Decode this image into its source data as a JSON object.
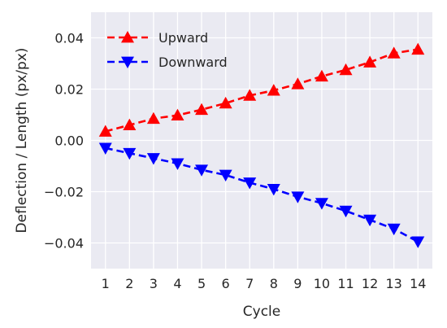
{
  "chart_data": {
    "type": "line",
    "xlabel": "Cycle",
    "ylabel": "Deflection / Length (px/px)",
    "x": [
      1,
      2,
      3,
      4,
      5,
      6,
      7,
      8,
      9,
      10,
      11,
      12,
      13,
      14
    ],
    "xlim": [
      0.4,
      14.6
    ],
    "ylim": [
      -0.05,
      0.05
    ],
    "xticks": [
      "1",
      "2",
      "3",
      "4",
      "5",
      "6",
      "7",
      "8",
      "9",
      "10",
      "11",
      "12",
      "13",
      "14"
    ],
    "yticks": [
      {
        "value": -0.04,
        "label": "−0.04"
      },
      {
        "value": -0.02,
        "label": "−0.02"
      },
      {
        "value": 0.0,
        "label": "0.00"
      },
      {
        "value": 0.02,
        "label": "0.02"
      },
      {
        "value": 0.04,
        "label": "0.04"
      }
    ],
    "grid": true,
    "legend_position": "top-left",
    "background": "#eaeaf2",
    "series": [
      {
        "name": "Upward",
        "color": "#ff0000",
        "marker": "triangle-up",
        "linestyle": "dashed",
        "values": [
          0.0035,
          0.006,
          0.0085,
          0.0098,
          0.012,
          0.0145,
          0.0175,
          0.0195,
          0.022,
          0.025,
          0.0275,
          0.0305,
          0.034,
          0.0355
        ]
      },
      {
        "name": "Downward",
        "color": "#0000ff",
        "marker": "triangle-down",
        "linestyle": "dashed",
        "values": [
          -0.003,
          -0.005,
          -0.007,
          -0.009,
          -0.0115,
          -0.0135,
          -0.0165,
          -0.019,
          -0.022,
          -0.0245,
          -0.0275,
          -0.031,
          -0.0345,
          -0.0395
        ]
      }
    ]
  }
}
